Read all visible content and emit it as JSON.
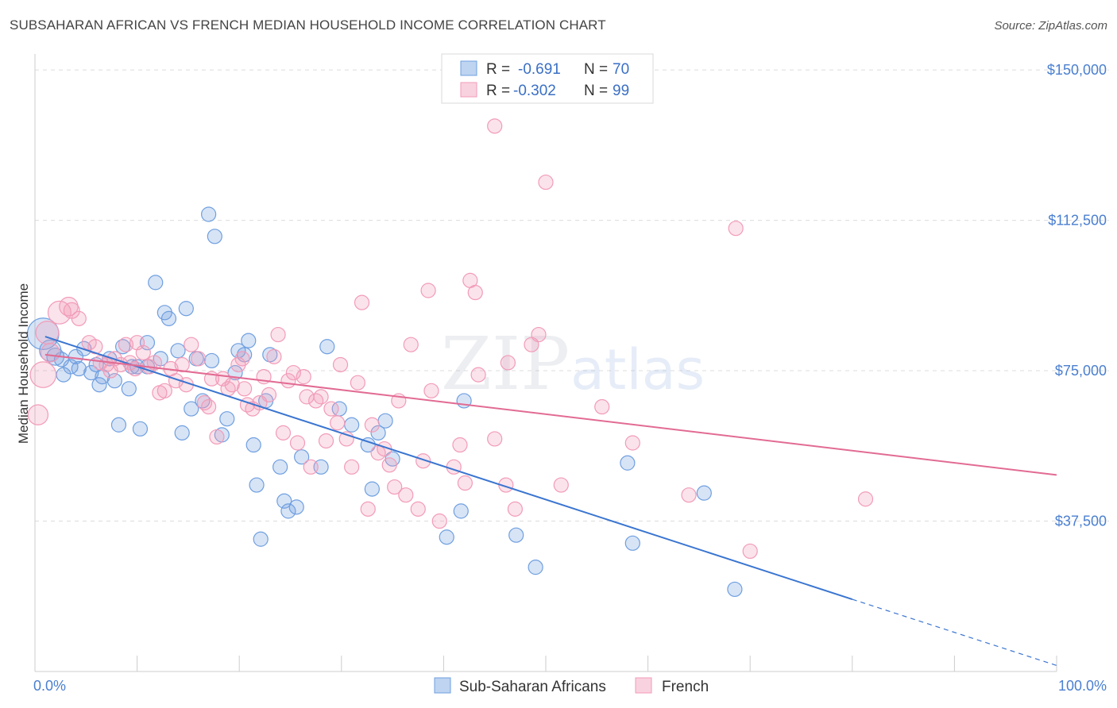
{
  "title": "SUBSAHARAN AFRICAN VS FRENCH MEDIAN HOUSEHOLD INCOME CORRELATION CHART",
  "source": "Source: ZipAtlas.com",
  "watermark": {
    "zip": "ZIP",
    "atlas": "atlas"
  },
  "colors": {
    "blue": "#6f9fe0",
    "blue_line": "#3a75d0",
    "pink": "#f29bb8",
    "pink_line": "#e26b93",
    "tick": "#4a7fd0"
  },
  "chart_data": {
    "type": "scatter",
    "xlabel": "",
    "ylabel": "Median Household Income",
    "xlim": [
      0,
      100
    ],
    "ylim": [
      0,
      152000
    ],
    "x_tick_labels": [
      "0.0%",
      "100.0%"
    ],
    "y_ticks": [
      37500,
      75000,
      112500,
      150000
    ],
    "y_tick_labels": [
      "$37,500",
      "$75,000",
      "$112,500",
      "$150,000"
    ],
    "grid": true,
    "legend_position": "top-center",
    "legend": [
      {
        "r_label": "R =",
        "r": "-0.691",
        "n_label": "N =",
        "n": "70"
      },
      {
        "r_label": "R =",
        "r": "-0.302",
        "n_label": "N =",
        "n": "99"
      }
    ],
    "series": [
      {
        "name": "Sub-Saharan Africans",
        "color": "#6f9fe0",
        "trend": {
          "x0": 1,
          "y0": 83500,
          "x1": 80,
          "y1": 18000,
          "dash_to_x": 100,
          "dash_to_y": 1500
        },
        "points": [
          {
            "x": 0.8,
            "y": 84200,
            "s": 2.2
          },
          {
            "x": 1.5,
            "y": 80000,
            "s": 1.5
          },
          {
            "x": 2.0,
            "y": 78500,
            "s": 1.2
          },
          {
            "x": 2.6,
            "y": 77800,
            "s": 1
          },
          {
            "x": 2.8,
            "y": 74000,
            "s": 1
          },
          {
            "x": 3.5,
            "y": 76000,
            "s": 1
          },
          {
            "x": 4.0,
            "y": 78500,
            "s": 1
          },
          {
            "x": 4.3,
            "y": 75500,
            "s": 1
          },
          {
            "x": 4.8,
            "y": 80500,
            "s": 1
          },
          {
            "x": 5.5,
            "y": 74500,
            "s": 1
          },
          {
            "x": 6.0,
            "y": 76500,
            "s": 1
          },
          {
            "x": 6.3,
            "y": 71500,
            "s": 1
          },
          {
            "x": 6.6,
            "y": 73500,
            "s": 1
          },
          {
            "x": 7.3,
            "y": 78000,
            "s": 1
          },
          {
            "x": 7.8,
            "y": 72500,
            "s": 1
          },
          {
            "x": 8.2,
            "y": 61500,
            "s": 1
          },
          {
            "x": 8.6,
            "y": 81000,
            "s": 1
          },
          {
            "x": 9.2,
            "y": 70500,
            "s": 1
          },
          {
            "x": 10.0,
            "y": 76000,
            "s": 1
          },
          {
            "x": 10.3,
            "y": 60500,
            "s": 1
          },
          {
            "x": 11.0,
            "y": 76000,
            "s": 1
          },
          {
            "x": 11.0,
            "y": 82000,
            "s": 1
          },
          {
            "x": 11.8,
            "y": 97000,
            "s": 1
          },
          {
            "x": 12.3,
            "y": 78000,
            "s": 1
          },
          {
            "x": 12.7,
            "y": 89500,
            "s": 1
          },
          {
            "x": 13.1,
            "y": 88000,
            "s": 1
          },
          {
            "x": 14.0,
            "y": 80000,
            "s": 1
          },
          {
            "x": 14.4,
            "y": 59500,
            "s": 1
          },
          {
            "x": 14.8,
            "y": 90500,
            "s": 1
          },
          {
            "x": 15.3,
            "y": 65500,
            "s": 1
          },
          {
            "x": 15.8,
            "y": 78000,
            "s": 1
          },
          {
            "x": 16.4,
            "y": 67500,
            "s": 1
          },
          {
            "x": 17.0,
            "y": 114000,
            "s": 1
          },
          {
            "x": 17.3,
            "y": 77500,
            "s": 1
          },
          {
            "x": 17.6,
            "y": 108500,
            "s": 1
          },
          {
            "x": 18.3,
            "y": 59000,
            "s": 1
          },
          {
            "x": 18.8,
            "y": 63000,
            "s": 1
          },
          {
            "x": 19.6,
            "y": 74500,
            "s": 1
          },
          {
            "x": 19.9,
            "y": 80000,
            "s": 1
          },
          {
            "x": 20.5,
            "y": 79000,
            "s": 1
          },
          {
            "x": 20.9,
            "y": 82500,
            "s": 1
          },
          {
            "x": 21.4,
            "y": 56500,
            "s": 1
          },
          {
            "x": 21.7,
            "y": 46500,
            "s": 1
          },
          {
            "x": 22.1,
            "y": 33000,
            "s": 1
          },
          {
            "x": 22.6,
            "y": 67500,
            "s": 1
          },
          {
            "x": 24.0,
            "y": 51000,
            "s": 1
          },
          {
            "x": 24.4,
            "y": 42500,
            "s": 1
          },
          {
            "x": 24.8,
            "y": 40000,
            "s": 1
          },
          {
            "x": 25.6,
            "y": 41000,
            "s": 1
          },
          {
            "x": 26.1,
            "y": 53500,
            "s": 1
          },
          {
            "x": 28.0,
            "y": 51000,
            "s": 1
          },
          {
            "x": 28.6,
            "y": 81000,
            "s": 1
          },
          {
            "x": 29.8,
            "y": 65500,
            "s": 1
          },
          {
            "x": 31.0,
            "y": 61500,
            "s": 1
          },
          {
            "x": 32.6,
            "y": 56500,
            "s": 1
          },
          {
            "x": 33.0,
            "y": 45500,
            "s": 1
          },
          {
            "x": 33.6,
            "y": 59500,
            "s": 1
          },
          {
            "x": 34.3,
            "y": 62500,
            "s": 1
          },
          {
            "x": 35.0,
            "y": 53000,
            "s": 1
          },
          {
            "x": 40.3,
            "y": 33500,
            "s": 1
          },
          {
            "x": 41.7,
            "y": 40000,
            "s": 1
          },
          {
            "x": 42.0,
            "y": 67500,
            "s": 1
          },
          {
            "x": 47.1,
            "y": 34000,
            "s": 1
          },
          {
            "x": 49.0,
            "y": 26000,
            "s": 1
          },
          {
            "x": 58.5,
            "y": 32000,
            "s": 1
          },
          {
            "x": 58.0,
            "y": 52000,
            "s": 1
          },
          {
            "x": 65.5,
            "y": 44500,
            "s": 1
          },
          {
            "x": 68.5,
            "y": 20500,
            "s": 1
          },
          {
            "x": 23.0,
            "y": 79000,
            "s": 1
          },
          {
            "x": 9.5,
            "y": 76000,
            "s": 1
          }
        ]
      },
      {
        "name": "French",
        "color": "#f29bb8",
        "trend": {
          "x0": 1,
          "y0": 79000,
          "x1": 100,
          "y1": 49000
        },
        "points": [
          {
            "x": 0.3,
            "y": 64000,
            "s": 1.4
          },
          {
            "x": 0.8,
            "y": 74000,
            "s": 1.8
          },
          {
            "x": 1.2,
            "y": 84500,
            "s": 1.6
          },
          {
            "x": 1.5,
            "y": 79500,
            "s": 1.3
          },
          {
            "x": 2.4,
            "y": 89500,
            "s": 1.6
          },
          {
            "x": 3.3,
            "y": 91000,
            "s": 1.3
          },
          {
            "x": 3.6,
            "y": 90000,
            "s": 1.1
          },
          {
            "x": 4.3,
            "y": 88000,
            "s": 1
          },
          {
            "x": 5.3,
            "y": 82000,
            "s": 1
          },
          {
            "x": 5.9,
            "y": 81000,
            "s": 1
          },
          {
            "x": 6.4,
            "y": 77000,
            "s": 1
          },
          {
            "x": 7.0,
            "y": 76500,
            "s": 1
          },
          {
            "x": 7.4,
            "y": 75000,
            "s": 1
          },
          {
            "x": 7.8,
            "y": 78000,
            "s": 1
          },
          {
            "x": 8.4,
            "y": 76500,
            "s": 1
          },
          {
            "x": 8.9,
            "y": 81500,
            "s": 1
          },
          {
            "x": 9.3,
            "y": 77000,
            "s": 1
          },
          {
            "x": 10.0,
            "y": 82000,
            "s": 1
          },
          {
            "x": 10.6,
            "y": 79500,
            "s": 1
          },
          {
            "x": 11.2,
            "y": 76000,
            "s": 1
          },
          {
            "x": 11.7,
            "y": 77000,
            "s": 1
          },
          {
            "x": 12.2,
            "y": 69500,
            "s": 1
          },
          {
            "x": 12.7,
            "y": 70000,
            "s": 1
          },
          {
            "x": 13.3,
            "y": 75500,
            "s": 1
          },
          {
            "x": 13.8,
            "y": 72500,
            "s": 1
          },
          {
            "x": 14.4,
            "y": 76500,
            "s": 1
          },
          {
            "x": 14.8,
            "y": 71500,
            "s": 1
          },
          {
            "x": 15.3,
            "y": 81500,
            "s": 1
          },
          {
            "x": 16.0,
            "y": 78000,
            "s": 1
          },
          {
            "x": 16.6,
            "y": 67000,
            "s": 1
          },
          {
            "x": 17.0,
            "y": 66000,
            "s": 1
          },
          {
            "x": 17.3,
            "y": 73000,
            "s": 1
          },
          {
            "x": 17.8,
            "y": 58500,
            "s": 1
          },
          {
            "x": 18.4,
            "y": 73000,
            "s": 1
          },
          {
            "x": 18.9,
            "y": 70500,
            "s": 1
          },
          {
            "x": 19.3,
            "y": 71500,
            "s": 1
          },
          {
            "x": 19.9,
            "y": 76500,
            "s": 1
          },
          {
            "x": 20.3,
            "y": 78000,
            "s": 1
          },
          {
            "x": 20.8,
            "y": 66500,
            "s": 1
          },
          {
            "x": 21.3,
            "y": 65500,
            "s": 1
          },
          {
            "x": 22.0,
            "y": 67000,
            "s": 1
          },
          {
            "x": 22.4,
            "y": 73500,
            "s": 1
          },
          {
            "x": 22.9,
            "y": 69000,
            "s": 1
          },
          {
            "x": 23.4,
            "y": 78500,
            "s": 1
          },
          {
            "x": 23.8,
            "y": 84000,
            "s": 1
          },
          {
            "x": 24.3,
            "y": 59500,
            "s": 1
          },
          {
            "x": 24.8,
            "y": 72500,
            "s": 1
          },
          {
            "x": 25.3,
            "y": 74500,
            "s": 1
          },
          {
            "x": 25.7,
            "y": 57000,
            "s": 1
          },
          {
            "x": 26.3,
            "y": 73500,
            "s": 1
          },
          {
            "x": 26.6,
            "y": 68500,
            "s": 1
          },
          {
            "x": 27.0,
            "y": 51000,
            "s": 1
          },
          {
            "x": 27.5,
            "y": 67500,
            "s": 1
          },
          {
            "x": 28.0,
            "y": 68500,
            "s": 1
          },
          {
            "x": 28.5,
            "y": 57500,
            "s": 1
          },
          {
            "x": 29.0,
            "y": 65500,
            "s": 1
          },
          {
            "x": 29.6,
            "y": 62000,
            "s": 1
          },
          {
            "x": 29.9,
            "y": 76500,
            "s": 1
          },
          {
            "x": 30.5,
            "y": 58000,
            "s": 1
          },
          {
            "x": 31.0,
            "y": 51000,
            "s": 1
          },
          {
            "x": 31.6,
            "y": 72000,
            "s": 1
          },
          {
            "x": 32.0,
            "y": 92000,
            "s": 1
          },
          {
            "x": 32.6,
            "y": 40500,
            "s": 1
          },
          {
            "x": 33.0,
            "y": 61500,
            "s": 1
          },
          {
            "x": 33.6,
            "y": 54500,
            "s": 1
          },
          {
            "x": 34.2,
            "y": 55500,
            "s": 1
          },
          {
            "x": 34.7,
            "y": 51500,
            "s": 1
          },
          {
            "x": 35.2,
            "y": 46000,
            "s": 1
          },
          {
            "x": 35.6,
            "y": 67500,
            "s": 1
          },
          {
            "x": 36.3,
            "y": 44000,
            "s": 1
          },
          {
            "x": 36.8,
            "y": 81500,
            "s": 1
          },
          {
            "x": 37.5,
            "y": 40500,
            "s": 1
          },
          {
            "x": 38.0,
            "y": 52500,
            "s": 1
          },
          {
            "x": 38.5,
            "y": 95000,
            "s": 1
          },
          {
            "x": 38.8,
            "y": 70000,
            "s": 1
          },
          {
            "x": 39.6,
            "y": 37500,
            "s": 1
          },
          {
            "x": 41.0,
            "y": 51000,
            "s": 1
          },
          {
            "x": 41.6,
            "y": 56500,
            "s": 1
          },
          {
            "x": 42.1,
            "y": 47000,
            "s": 1
          },
          {
            "x": 42.6,
            "y": 97500,
            "s": 1
          },
          {
            "x": 43.1,
            "y": 94500,
            "s": 1
          },
          {
            "x": 43.4,
            "y": 74000,
            "s": 1
          },
          {
            "x": 45.0,
            "y": 58000,
            "s": 1
          },
          {
            "x": 45.0,
            "y": 136000,
            "s": 1
          },
          {
            "x": 46.1,
            "y": 46500,
            "s": 1
          },
          {
            "x": 46.3,
            "y": 77000,
            "s": 1
          },
          {
            "x": 47.0,
            "y": 40500,
            "s": 1
          },
          {
            "x": 48.6,
            "y": 81500,
            "s": 1
          },
          {
            "x": 49.3,
            "y": 84000,
            "s": 1
          },
          {
            "x": 50.0,
            "y": 122000,
            "s": 1
          },
          {
            "x": 51.5,
            "y": 46500,
            "s": 1
          },
          {
            "x": 55.5,
            "y": 66000,
            "s": 1
          },
          {
            "x": 58.5,
            "y": 57000,
            "s": 1
          },
          {
            "x": 64.0,
            "y": 44000,
            "s": 1
          },
          {
            "x": 68.6,
            "y": 110500,
            "s": 1
          },
          {
            "x": 70.0,
            "y": 30000,
            "s": 1
          },
          {
            "x": 81.3,
            "y": 43000,
            "s": 1
          },
          {
            "x": 20.5,
            "y": 70500,
            "s": 1
          },
          {
            "x": 9.8,
            "y": 75500,
            "s": 1
          }
        ]
      }
    ]
  }
}
